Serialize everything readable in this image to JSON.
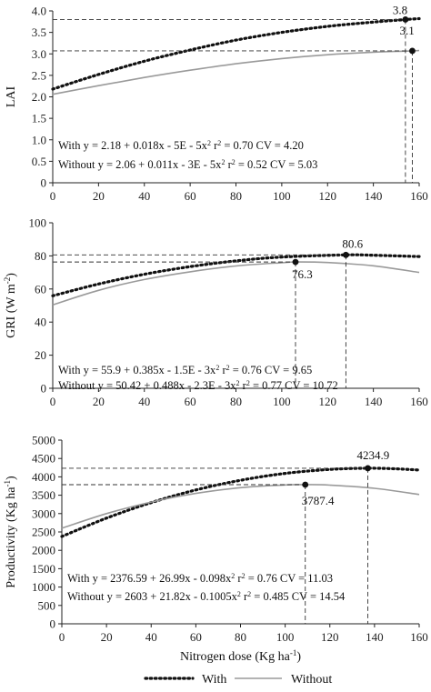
{
  "legend": {
    "with_label": "With",
    "without_label": "Without",
    "position": "bottom-center"
  },
  "colors": {
    "with": "#111111",
    "without": "#9a9a9a",
    "axis": "#222222"
  },
  "chart_data": [
    {
      "type": "line",
      "ylabel": "LAI",
      "xlabel": "",
      "xlim": [
        0,
        160
      ],
      "ylim": [
        0,
        4.0
      ],
      "xticks": [
        0,
        20,
        40,
        60,
        80,
        100,
        120,
        140,
        160
      ],
      "yticks": [
        0,
        0.5,
        1.0,
        1.5,
        2.0,
        2.5,
        3.0,
        3.5,
        4.0
      ],
      "ytick_labels": [
        "0",
        "0.5",
        "1.0",
        "1.5",
        "2.0",
        "2.5",
        "3.0",
        "3.5",
        "4.0"
      ],
      "series": [
        {
          "name": "With",
          "x": [
            0,
            20,
            40,
            60,
            80,
            100,
            120,
            140,
            154,
            160
          ],
          "values": [
            2.18,
            2.52,
            2.83,
            3.09,
            3.32,
            3.5,
            3.64,
            3.74,
            3.8,
            3.82
          ]
        },
        {
          "name": "Without",
          "x": [
            0,
            20,
            40,
            60,
            80,
            100,
            120,
            140,
            157,
            160
          ],
          "values": [
            2.06,
            2.26,
            2.45,
            2.62,
            2.77,
            2.89,
            2.98,
            3.04,
            3.07,
            3.08
          ]
        }
      ],
      "markers": [
        {
          "series": "With",
          "x": 154,
          "y": 3.8,
          "label": "3.8"
        },
        {
          "series": "Without",
          "x": 157,
          "y": 3.07,
          "label": "3.1"
        }
      ],
      "equations": [
        {
          "text_y": "With y = 2.18 + 0.018x - 5E - 5x",
          "r2": "0.70",
          "cv": "4.20"
        },
        {
          "text_y": "Without y = 2.06 + 0.011x - 3E - 5x",
          "r2": "0.52",
          "cv": "5.03"
        }
      ]
    },
    {
      "type": "line",
      "ylabel": "GRI (W m",
      "ylabel_sup": "-2",
      "ylabel_end": ")",
      "xlabel": "",
      "xlim": [
        0,
        160
      ],
      "ylim": [
        0,
        100
      ],
      "xticks": [
        0,
        20,
        40,
        60,
        80,
        100,
        120,
        140,
        160
      ],
      "yticks": [
        0,
        20,
        40,
        60,
        80,
        100
      ],
      "ytick_labels": [
        "0",
        "20",
        "40",
        "60",
        "80",
        "100"
      ],
      "series": [
        {
          "name": "With",
          "x": [
            0,
            20,
            40,
            60,
            80,
            100,
            128,
            140,
            160
          ],
          "values": [
            55.9,
            63.0,
            68.9,
            73.5,
            77.0,
            79.3,
            80.6,
            80.4,
            79.6
          ]
        },
        {
          "name": "Without",
          "x": [
            0,
            20,
            40,
            60,
            80,
            100,
            106,
            120,
            140,
            160
          ],
          "values": [
            50.4,
            59.2,
            65.7,
            70.4,
            73.9,
            75.9,
            76.3,
            76.0,
            74.0,
            70.0
          ]
        }
      ],
      "markers": [
        {
          "series": "With",
          "x": 128,
          "y": 80.6,
          "label": "80.6"
        },
        {
          "series": "Without",
          "x": 106,
          "y": 76.3,
          "label": "76.3"
        }
      ],
      "equations": [
        {
          "text_y": "With y = 55.9 + 0.385x - 1.5E - 3x",
          "r2": "0.76",
          "cv": "9.65"
        },
        {
          "text_y": "Without y = 50.42 + 0.488x - 2.3E - 3x",
          "r2": "0.77",
          "cv": "10.72"
        }
      ]
    },
    {
      "type": "line",
      "ylabel": "Productivity (Kg ha",
      "ylabel_sup": "-1",
      "ylabel_end": ")",
      "xlabel": "Nitrogen dose (Kg ha",
      "xlabel_sup": "-1",
      "xlabel_end": ")",
      "xlim": [
        0,
        160
      ],
      "ylim": [
        0,
        5000
      ],
      "xticks": [
        0,
        20,
        40,
        60,
        80,
        100,
        120,
        140,
        160
      ],
      "yticks": [
        0,
        500,
        1000,
        1500,
        2000,
        2500,
        3000,
        3500,
        4000,
        4500,
        5000
      ],
      "ytick_labels": [
        "0",
        "500",
        "1000",
        "1500",
        "2000",
        "2500",
        "3000",
        "3500",
        "4000",
        "4500",
        "5000"
      ],
      "series": [
        {
          "name": "With",
          "x": [
            0,
            20,
            40,
            60,
            80,
            100,
            120,
            137,
            150,
            160
          ],
          "values": [
            2376.6,
            2877,
            3299,
            3643,
            3907,
            4094,
            4202,
            4234.9,
            4217,
            4185
          ]
        },
        {
          "name": "Without",
          "x": [
            0,
            20,
            40,
            60,
            80,
            100,
            109,
            120,
            140,
            160
          ],
          "values": [
            2603,
            2999,
            3314,
            3550,
            3705,
            3780,
            3787.4,
            3775,
            3688,
            3520
          ]
        }
      ],
      "markers": [
        {
          "series": "With",
          "x": 137,
          "y": 4234.9,
          "label": "4234.9"
        },
        {
          "series": "Without",
          "x": 109,
          "y": 3787.4,
          "label": "3787.4"
        }
      ],
      "equations": [
        {
          "text_y": "With y = 2376.59 + 26.99x - 0.098x",
          "r2": "0.76",
          "cv": "11.03"
        },
        {
          "text_y": "Without y = 2603 + 21.82x - 0.1005x",
          "r2": "0.485",
          "cv": "14.54"
        }
      ]
    }
  ],
  "equation_labels": {
    "sq": "2",
    "r2_prefix": "r",
    "r2_eq": " = ",
    "cv_prefix": "CV = "
  }
}
